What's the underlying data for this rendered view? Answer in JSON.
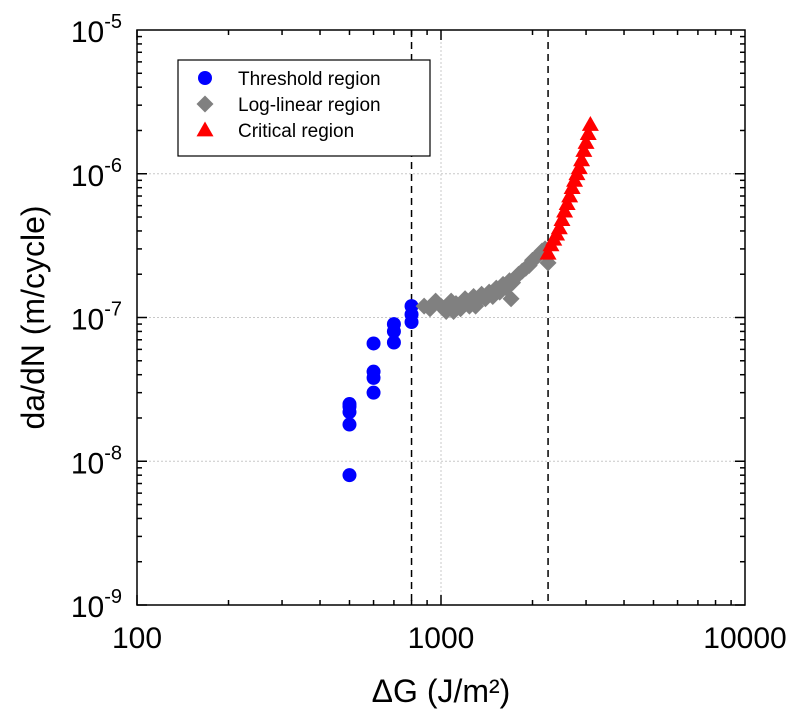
{
  "chart_data": {
    "type": "scatter",
    "xlabel": "ΔG (J/m²)",
    "ylabel": "da/dN (m/cycle)",
    "x_scale": "log",
    "y_scale": "log",
    "xlim": [
      100,
      10000
    ],
    "ylim": [
      1e-09,
      1e-05
    ],
    "x_ticks": [
      {
        "value": 100,
        "label": "100"
      },
      {
        "value": 1000,
        "label": "1000"
      },
      {
        "value": 10000,
        "label": "10000"
      }
    ],
    "y_ticks": [
      {
        "value": 1e-09,
        "base": "10",
        "exp": "-9"
      },
      {
        "value": 1e-08,
        "base": "10",
        "exp": "-8"
      },
      {
        "value": 1e-07,
        "base": "10",
        "exp": "-7"
      },
      {
        "value": 1e-06,
        "base": "10",
        "exp": "-6"
      },
      {
        "value": 1e-05,
        "base": "10",
        "exp": "-5"
      }
    ],
    "grid": true,
    "legend_position": "top-left",
    "vertical_lines": [
      800,
      2250
    ],
    "series": [
      {
        "name": "Threshold region",
        "marker": "circle",
        "color": "#0000ff",
        "x": [
          500,
          500,
          500,
          500,
          500,
          600,
          600,
          600,
          600,
          700,
          700,
          700,
          800,
          800,
          800
        ],
        "y": [
          8e-09,
          1.8e-08,
          2.2e-08,
          2.4e-08,
          2.5e-08,
          3e-08,
          3.8e-08,
          4.2e-08,
          6.6e-08,
          6.7e-08,
          8e-08,
          9e-08,
          9.3e-08,
          1.05e-07,
          1.2e-07
        ]
      },
      {
        "name": "Log-linear region",
        "marker": "diamond",
        "color": "#808080",
        "x": [
          880,
          920,
          960,
          1000,
          1040,
          1080,
          1120,
          1160,
          1200,
          1240,
          1280,
          1320,
          1360,
          1400,
          1440,
          1480,
          1520,
          1560,
          1600,
          1640,
          1680,
          1720,
          1760,
          1800,
          1850,
          1900,
          1950,
          2000,
          2050,
          2100,
          2150,
          2200,
          2250,
          1100,
          1300,
          1500,
          1700
        ],
        "y": [
          1.2e-07,
          1.15e-07,
          1.3e-07,
          1.2e-07,
          1.1e-07,
          1.3e-07,
          1.25e-07,
          1.15e-07,
          1.35e-07,
          1.2e-07,
          1.4e-07,
          1.3e-07,
          1.45e-07,
          1.35e-07,
          1.5e-07,
          1.4e-07,
          1.6e-07,
          1.5e-07,
          1.7e-07,
          1.6e-07,
          1.8e-07,
          1.75e-07,
          1.9e-07,
          2e-07,
          2.1e-07,
          2.2e-07,
          2.3e-07,
          2.5e-07,
          2.6e-07,
          2.75e-07,
          2.9e-07,
          3e-07,
          2.4e-07,
          1.1e-07,
          1.2e-07,
          1.45e-07,
          1.35e-07
        ]
      },
      {
        "name": "Critical region",
        "marker": "triangle",
        "color": "#ff0000",
        "x": [
          2250,
          2300,
          2350,
          2400,
          2450,
          2500,
          2550,
          2600,
          2650,
          2700,
          2750,
          2800,
          2850,
          2900,
          2950,
          3000,
          3050,
          3100
        ],
        "y": [
          2.8e-07,
          3.2e-07,
          3.5e-07,
          3.8e-07,
          4.2e-07,
          4.8e-07,
          5.5e-07,
          6.2e-07,
          7e-07,
          8e-07,
          9e-07,
          1e-06,
          1.1e-06,
          1.25e-06,
          1.45e-06,
          1.65e-06,
          1.9e-06,
          2.2e-06
        ]
      }
    ]
  }
}
